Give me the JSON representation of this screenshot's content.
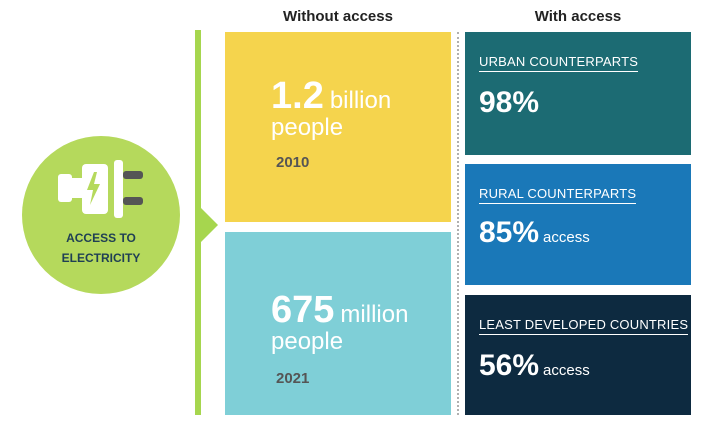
{
  "headers": {
    "without": "Without access",
    "with": "With access"
  },
  "badge": {
    "line1": "ACCESS TO",
    "line2": "ELECTRICITY",
    "icon": "plug-icon"
  },
  "without_access": [
    {
      "number": "1.2",
      "unit": "billion",
      "label": "people",
      "year": "2010"
    },
    {
      "number": "675",
      "unit": "million",
      "label": "people",
      "year": "2021"
    }
  ],
  "with_access": [
    {
      "label": "URBAN COUNTERPARTS",
      "value": "98%",
      "suffix": ""
    },
    {
      "label": "RURAL COUNTERPARTS",
      "value": "85%",
      "suffix": "access"
    },
    {
      "label": "LEAST DEVELOPED COUNTRIES",
      "value": "56%",
      "suffix": "access"
    }
  ],
  "colors": {
    "badge": "#b5d95c",
    "bar": "#a6d64e",
    "yellow": "#f5d44d",
    "cyan": "#7fcfd7",
    "urban": "#1c6b73",
    "rural": "#1a78b8",
    "least": "#0d2a40"
  }
}
